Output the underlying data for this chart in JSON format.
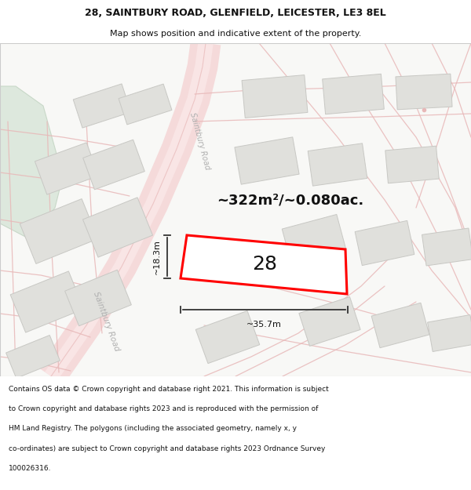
{
  "title_line1": "28, SAINTBURY ROAD, GLENFIELD, LEICESTER, LE3 8EL",
  "title_line2": "Map shows position and indicative extent of the property.",
  "footer_lines": [
    "Contains OS data © Crown copyright and database right 2021. This information is subject",
    "to Crown copyright and database rights 2023 and is reproduced with the permission of",
    "HM Land Registry. The polygons (including the associated geometry, namely x, y",
    "co-ordinates) are subject to Crown copyright and database rights 2023 Ordnance Survey",
    "100026316."
  ],
  "area_text": "~322m²/~0.080ac.",
  "property_number": "28",
  "width_label": "~35.7m",
  "height_label": "~18.3m",
  "map_bg": "#f8f8f6",
  "road_fill": "#f5dada",
  "road_line": "#e8b8b8",
  "road_center": "#fdf0f0",
  "highlight_color": "#ff0000",
  "building_fill": "#e0e0dc",
  "building_edge": "#c8c8c4",
  "green_fill": "#dde8dd",
  "green_edge": "#c8d8c8",
  "meas_color": "#333333",
  "road_label_color": "#b0b0b0",
  "title_fontsize": 9,
  "subtitle_fontsize": 8,
  "footer_fontsize": 6.5,
  "area_fontsize": 13,
  "prop_num_fontsize": 18,
  "meas_fontsize": 8
}
